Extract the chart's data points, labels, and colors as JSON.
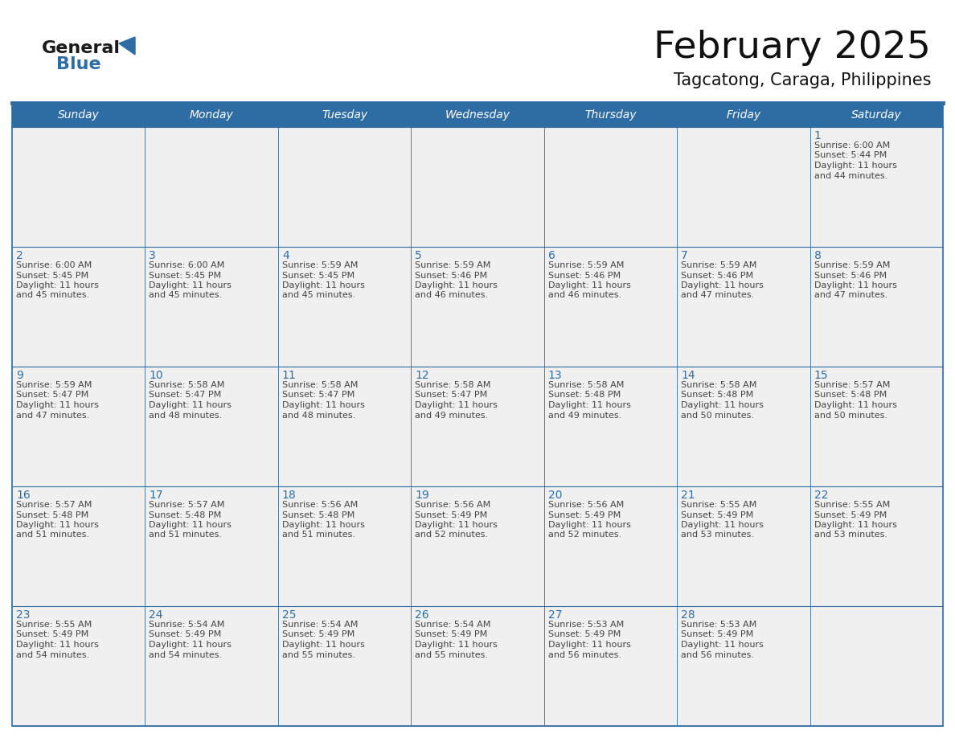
{
  "title": "February 2025",
  "subtitle": "Tagcatong, Caraga, Philippines",
  "header_color": "#2E6DA4",
  "header_text_color": "#FFFFFF",
  "day_names": [
    "Sunday",
    "Monday",
    "Tuesday",
    "Wednesday",
    "Thursday",
    "Friday",
    "Saturday"
  ],
  "background_color": "#FFFFFF",
  "cell_bg": "#F0F0F0",
  "border_color": "#2E6DA4",
  "date_color": "#2E6DA4",
  "text_color": "#444444",
  "logo_general_color": "#1a1a1a",
  "logo_blue_color": "#2E6DA4",
  "title_fontsize": 34,
  "subtitle_fontsize": 15,
  "header_fontsize": 10,
  "date_fontsize": 10,
  "cell_fontsize": 8,
  "days_data": [
    {
      "day": 1,
      "col": 6,
      "row": 0,
      "sunrise": "6:00 AM",
      "sunset": "5:44 PM",
      "daylight": "11 hours and 44 minutes."
    },
    {
      "day": 2,
      "col": 0,
      "row": 1,
      "sunrise": "6:00 AM",
      "sunset": "5:45 PM",
      "daylight": "11 hours and 45 minutes."
    },
    {
      "day": 3,
      "col": 1,
      "row": 1,
      "sunrise": "6:00 AM",
      "sunset": "5:45 PM",
      "daylight": "11 hours and 45 minutes."
    },
    {
      "day": 4,
      "col": 2,
      "row": 1,
      "sunrise": "5:59 AM",
      "sunset": "5:45 PM",
      "daylight": "11 hours and 45 minutes."
    },
    {
      "day": 5,
      "col": 3,
      "row": 1,
      "sunrise": "5:59 AM",
      "sunset": "5:46 PM",
      "daylight": "11 hours and 46 minutes."
    },
    {
      "day": 6,
      "col": 4,
      "row": 1,
      "sunrise": "5:59 AM",
      "sunset": "5:46 PM",
      "daylight": "11 hours and 46 minutes."
    },
    {
      "day": 7,
      "col": 5,
      "row": 1,
      "sunrise": "5:59 AM",
      "sunset": "5:46 PM",
      "daylight": "11 hours and 47 minutes."
    },
    {
      "day": 8,
      "col": 6,
      "row": 1,
      "sunrise": "5:59 AM",
      "sunset": "5:46 PM",
      "daylight": "11 hours and 47 minutes."
    },
    {
      "day": 9,
      "col": 0,
      "row": 2,
      "sunrise": "5:59 AM",
      "sunset": "5:47 PM",
      "daylight": "11 hours and 47 minutes."
    },
    {
      "day": 10,
      "col": 1,
      "row": 2,
      "sunrise": "5:58 AM",
      "sunset": "5:47 PM",
      "daylight": "11 hours and 48 minutes."
    },
    {
      "day": 11,
      "col": 2,
      "row": 2,
      "sunrise": "5:58 AM",
      "sunset": "5:47 PM",
      "daylight": "11 hours and 48 minutes."
    },
    {
      "day": 12,
      "col": 3,
      "row": 2,
      "sunrise": "5:58 AM",
      "sunset": "5:47 PM",
      "daylight": "11 hours and 49 minutes."
    },
    {
      "day": 13,
      "col": 4,
      "row": 2,
      "sunrise": "5:58 AM",
      "sunset": "5:48 PM",
      "daylight": "11 hours and 49 minutes."
    },
    {
      "day": 14,
      "col": 5,
      "row": 2,
      "sunrise": "5:58 AM",
      "sunset": "5:48 PM",
      "daylight": "11 hours and 50 minutes."
    },
    {
      "day": 15,
      "col": 6,
      "row": 2,
      "sunrise": "5:57 AM",
      "sunset": "5:48 PM",
      "daylight": "11 hours and 50 minutes."
    },
    {
      "day": 16,
      "col": 0,
      "row": 3,
      "sunrise": "5:57 AM",
      "sunset": "5:48 PM",
      "daylight": "11 hours and 51 minutes."
    },
    {
      "day": 17,
      "col": 1,
      "row": 3,
      "sunrise": "5:57 AM",
      "sunset": "5:48 PM",
      "daylight": "11 hours and 51 minutes."
    },
    {
      "day": 18,
      "col": 2,
      "row": 3,
      "sunrise": "5:56 AM",
      "sunset": "5:48 PM",
      "daylight": "11 hours and 51 minutes."
    },
    {
      "day": 19,
      "col": 3,
      "row": 3,
      "sunrise": "5:56 AM",
      "sunset": "5:49 PM",
      "daylight": "11 hours and 52 minutes."
    },
    {
      "day": 20,
      "col": 4,
      "row": 3,
      "sunrise": "5:56 AM",
      "sunset": "5:49 PM",
      "daylight": "11 hours and 52 minutes."
    },
    {
      "day": 21,
      "col": 5,
      "row": 3,
      "sunrise": "5:55 AM",
      "sunset": "5:49 PM",
      "daylight": "11 hours and 53 minutes."
    },
    {
      "day": 22,
      "col": 6,
      "row": 3,
      "sunrise": "5:55 AM",
      "sunset": "5:49 PM",
      "daylight": "11 hours and 53 minutes."
    },
    {
      "day": 23,
      "col": 0,
      "row": 4,
      "sunrise": "5:55 AM",
      "sunset": "5:49 PM",
      "daylight": "11 hours and 54 minutes."
    },
    {
      "day": 24,
      "col": 1,
      "row": 4,
      "sunrise": "5:54 AM",
      "sunset": "5:49 PM",
      "daylight": "11 hours and 54 minutes."
    },
    {
      "day": 25,
      "col": 2,
      "row": 4,
      "sunrise": "5:54 AM",
      "sunset": "5:49 PM",
      "daylight": "11 hours and 55 minutes."
    },
    {
      "day": 26,
      "col": 3,
      "row": 4,
      "sunrise": "5:54 AM",
      "sunset": "5:49 PM",
      "daylight": "11 hours and 55 minutes."
    },
    {
      "day": 27,
      "col": 4,
      "row": 4,
      "sunrise": "5:53 AM",
      "sunset": "5:49 PM",
      "daylight": "11 hours and 56 minutes."
    },
    {
      "day": 28,
      "col": 5,
      "row": 4,
      "sunrise": "5:53 AM",
      "sunset": "5:49 PM",
      "daylight": "11 hours and 56 minutes."
    }
  ]
}
